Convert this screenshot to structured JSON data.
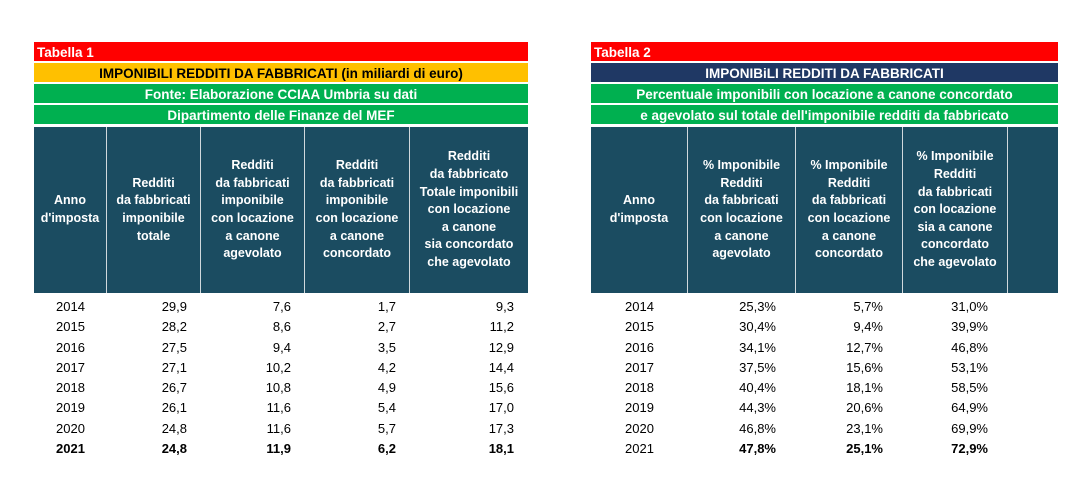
{
  "table1": {
    "label": "Tabella 1",
    "title": "IMPONIBILI REDDITI DA FABBRICATI (in miliardi di euro)",
    "source_line1": "Fonte: Elaborazione CCIAA Umbria su dati",
    "source_line2": "Dipartimento delle Finanze del MEF",
    "headers": [
      "Anno\nd'imposta",
      "Redditi\nda fabbricati\nimponibile\ntotale",
      "Redditi\nda fabbricati\nimponibile\ncon locazione\na canone\nagevolato",
      "Redditi\nda fabbricati\nimponibile\ncon locazione\na canone\nconcordato",
      "Redditi\nda fabbricato\nTotale imponibili\ncon locazione\na canone\nsia concordato\nche agevolato"
    ],
    "rows": [
      [
        "2014",
        "29,9",
        "7,6",
        "1,7",
        "9,3"
      ],
      [
        "2015",
        "28,2",
        "8,6",
        "2,7",
        "11,2"
      ],
      [
        "2016",
        "27,5",
        "9,4",
        "3,5",
        "12,9"
      ],
      [
        "2017",
        "27,1",
        "10,2",
        "4,2",
        "14,4"
      ],
      [
        "2018",
        "26,7",
        "10,8",
        "4,9",
        "15,6"
      ],
      [
        "2019",
        "26,1",
        "11,6",
        "5,4",
        "17,0"
      ],
      [
        "2020",
        "24,8",
        "11,6",
        "5,7",
        "17,3"
      ],
      [
        "2021",
        "24,8",
        "11,9",
        "6,2",
        "18,1"
      ]
    ]
  },
  "table2": {
    "label": "Tabella 2",
    "title": "IMPONIBiLI REDDITI DA FABBRICATI",
    "subtitle_line1": "Percentuale imponibili con locazione a canone concordato",
    "subtitle_line2": "e agevolato sul totale dell'imponibile redditi da fabbricato",
    "headers": [
      "Anno\nd'imposta",
      "% Imponibile\nRedditi\nda fabbricati\ncon locazione\na canone\nagevolato",
      "% Imponibile\nRedditi\nda fabbricati\ncon locazione\na canone\nconcordato",
      "% Imponibile\nRedditi\nda fabbricati\ncon locazione\nsia a canone\nconcordato\nche agevolato",
      ""
    ],
    "rows": [
      [
        "2014",
        "25,3%",
        "5,7%",
        "31,0%"
      ],
      [
        "2015",
        "30,4%",
        "9,4%",
        "39,9%"
      ],
      [
        "2016",
        "34,1%",
        "12,7%",
        "46,8%"
      ],
      [
        "2017",
        "37,5%",
        "15,6%",
        "53,1%"
      ],
      [
        "2018",
        "40,4%",
        "18,1%",
        "58,5%"
      ],
      [
        "2019",
        "44,3%",
        "20,6%",
        "64,9%"
      ],
      [
        "2020",
        "46,8%",
        "23,1%",
        "69,9%"
      ],
      [
        "2021",
        "47,8%",
        "25,1%",
        "72,9%"
      ]
    ]
  }
}
